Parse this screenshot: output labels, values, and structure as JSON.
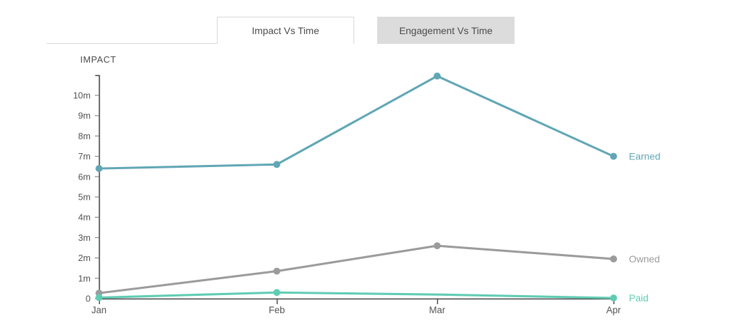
{
  "tabs": [
    {
      "id": "impact",
      "label": "Impact Vs Time",
      "active": true
    },
    {
      "id": "engagement",
      "label": "Engagement Vs Time",
      "active": false
    }
  ],
  "colors": {
    "earned": "#61a6b5",
    "owned": "#9b9b9b",
    "paid": "#5fccb3",
    "axis": "#404040",
    "tick": "#8a8a8a",
    "tick_label": "#545454",
    "axis_title": "#4a4a4a",
    "tab_text": "#4a4a4a",
    "tab_border": "#d8d8d8",
    "inactive_tab_bg": "#dcdcdc"
  },
  "chart_data": {
    "type": "line",
    "title": "",
    "ylabel": "IMPACT",
    "xlabel": "",
    "grid": false,
    "legend_position": "right-of-last-point",
    "categories": [
      "Jan",
      "Feb",
      "Mar",
      "Apr"
    ],
    "ylim": [
      0,
      11
    ],
    "yticks": [
      {
        "label": "10m",
        "value": 10
      },
      {
        "label": "9m",
        "value": 9
      },
      {
        "label": "8m",
        "value": 8
      },
      {
        "label": "7m",
        "value": 7
      },
      {
        "label": "6m",
        "value": 6
      },
      {
        "label": "5m",
        "value": 5
      },
      {
        "label": "4m",
        "value": 4
      },
      {
        "label": "3m",
        "value": 3
      },
      {
        "label": "2m",
        "value": 2
      },
      {
        "label": "1m",
        "value": 1
      },
      {
        "label": "0",
        "value": 0
      }
    ],
    "series": [
      {
        "name": "Earned",
        "color": "#61a6b5",
        "values": [
          6.4,
          6.6,
          10.95,
          7.0
        ],
        "markers": [
          true,
          true,
          true,
          true
        ]
      },
      {
        "name": "Owned",
        "color": "#9b9b9b",
        "values": [
          0.27,
          1.35,
          2.6,
          1.95
        ],
        "markers": [
          true,
          true,
          true,
          true
        ]
      },
      {
        "name": "Paid",
        "color": "#5fccb3",
        "values": [
          0.05,
          0.3,
          0.2,
          0.03
        ],
        "markers": [
          true,
          true,
          false,
          true
        ]
      }
    ]
  }
}
